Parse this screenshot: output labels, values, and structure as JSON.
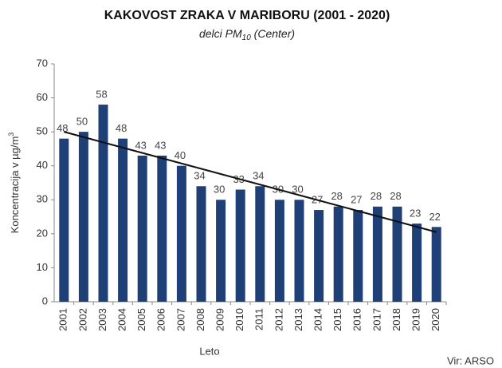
{
  "chart_data": {
    "type": "bar",
    "title": "KAKOVOST ZRAKA V MARIBORU (2001 - 2020)",
    "subtitle": [
      "delci PM",
      "10",
      " (Center)"
    ],
    "ylabel": [
      "Koncentracija v µg/m",
      "3"
    ],
    "xlabel": "Leto",
    "source": "Vir: ARSO",
    "categories": [
      "2001",
      "2002",
      "2003",
      "2004",
      "2005",
      "2006",
      "2007",
      "2008",
      "2009",
      "2010",
      "2011",
      "2012",
      "2013",
      "2014",
      "2015",
      "2016",
      "2017",
      "2018",
      "2019",
      "2020"
    ],
    "values": [
      48,
      50,
      58,
      48,
      43,
      43,
      40,
      34,
      30,
      33,
      34,
      30,
      30,
      27,
      28,
      27,
      28,
      28,
      23,
      22
    ],
    "color": "#1f3f77",
    "trendline": {
      "values": [
        50,
        20.5
      ],
      "color": "#111111"
    },
    "ylim": [
      0,
      70
    ],
    "yticks": [
      0,
      10,
      20,
      30,
      40,
      50,
      60,
      70
    ],
    "grid": false
  }
}
